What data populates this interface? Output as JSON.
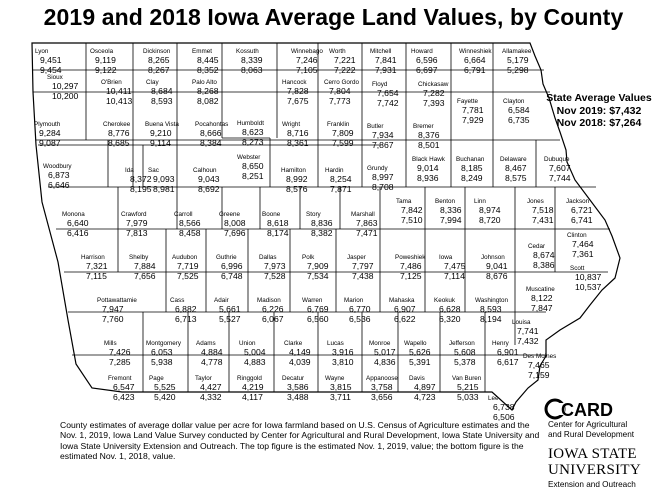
{
  "title": "2019 and 2018 Iowa Average Land Values, by County",
  "state": {
    "heading": "State Average Values",
    "line_2019": "Nov 2019: $7,432",
    "line_2018": "Nov 2018: $7,264"
  },
  "footnote": "County estimates of average dollar value per acre for Iowa farmland based on U.S. Census of Agriculture estimates and the Nov. 1, 2019, Iowa Land Value Survey conducted by Center for Agricultural and Rural Development, Iowa State University and Iowa State University Extension and Outreach. The top figure is the estimated Nov. 1, 2019, value; the bottom figure is the estimated Nov. 1, 2018, value.",
  "card": {
    "logo": "CARD",
    "line1": "Center for Agricultural",
    "line2": "and Rural Development"
  },
  "isu": {
    "line1": "IOWA STATE",
    "line2": "UNIVERSITY",
    "line3": "Extension and Outreach"
  },
  "counties": [
    {
      "name": "Lyon",
      "v2019": "9,451",
      "v2018": "9,454"
    },
    {
      "name": "Osceola",
      "v2019": "9,119",
      "v2018": "9,122"
    },
    {
      "name": "Dickinson",
      "v2019": "8,265",
      "v2018": "8,267"
    },
    {
      "name": "Emmet",
      "v2019": "8,445",
      "v2018": "8,352"
    },
    {
      "name": "Kossuth",
      "v2019": "8,339",
      "v2018": "8,063"
    },
    {
      "name": "Winnebago",
      "v2019": "7,246",
      "v2018": "7,105"
    },
    {
      "name": "Worth",
      "v2019": "7,221",
      "v2018": "7,222"
    },
    {
      "name": "Mitchell",
      "v2019": "7,841",
      "v2018": "7,931"
    },
    {
      "name": "Howard",
      "v2019": "6,596",
      "v2018": "6,697"
    },
    {
      "name": "Winneshiek",
      "v2019": "6,664",
      "v2018": "6,791"
    },
    {
      "name": "Allamakee",
      "v2019": "5,179",
      "v2018": "5,298"
    },
    {
      "name": "Sioux",
      "v2019": "10,297",
      "v2018": "10,200"
    },
    {
      "name": "O'Brien",
      "v2019": "10,411",
      "v2018": "10,413"
    },
    {
      "name": "Clay",
      "v2019": "8,684",
      "v2018": "8,593"
    },
    {
      "name": "Palo Alto",
      "v2019": "8,268",
      "v2018": "8,082"
    },
    {
      "name": "Hancock",
      "v2019": "7,828",
      "v2018": "7,675"
    },
    {
      "name": "Cerro Gordo",
      "v2019": "7,804",
      "v2018": "7,773"
    },
    {
      "name": "Floyd",
      "v2019": "7,654",
      "v2018": "7,742"
    },
    {
      "name": "Chickasaw",
      "v2019": "7,282",
      "v2018": "7,393"
    },
    {
      "name": "Fayette",
      "v2019": "7,781",
      "v2018": "7,929"
    },
    {
      "name": "Clayton",
      "v2019": "6,584",
      "v2018": "6,735"
    },
    {
      "name": "Plymouth",
      "v2019": "9,284",
      "v2018": "9,087"
    },
    {
      "name": "Cherokee",
      "v2019": "8,776",
      "v2018": "8,685"
    },
    {
      "name": "Buena Vista",
      "v2019": "9,210",
      "v2018": "9,114"
    },
    {
      "name": "Pocahontas",
      "v2019": "8,666",
      "v2018": "8,384"
    },
    {
      "name": "Humboldt",
      "v2019": "8,623",
      "v2018": "8,273"
    },
    {
      "name": "Wright",
      "v2019": "8,716",
      "v2018": "8,361"
    },
    {
      "name": "Franklin",
      "v2019": "7,809",
      "v2018": "7,599"
    },
    {
      "name": "Butler",
      "v2019": "7,934",
      "v2018": "7,867"
    },
    {
      "name": "Bremer",
      "v2019": "8,376",
      "v2018": "8,501"
    },
    {
      "name": "Woodbury",
      "v2019": "6,873",
      "v2018": "6,646"
    },
    {
      "name": "Ida",
      "v2019": "8,372",
      "v2018": "8,195"
    },
    {
      "name": "Sac",
      "v2019": "9,093",
      "v2018": "8,981"
    },
    {
      "name": "Calhoun",
      "v2019": "9,043",
      "v2018": "8,692"
    },
    {
      "name": "Webster",
      "v2019": "8,650",
      "v2018": "8,251"
    },
    {
      "name": "Hamilton",
      "v2019": "8,992",
      "v2018": "8,576"
    },
    {
      "name": "Hardin",
      "v2019": "8,254",
      "v2018": "7,871"
    },
    {
      "name": "Grundy",
      "v2019": "8,997",
      "v2018": "8,708"
    },
    {
      "name": "Black Hawk",
      "v2019": "9,014",
      "v2018": "8,936"
    },
    {
      "name": "Buchanan",
      "v2019": "8,185",
      "v2018": "8,249"
    },
    {
      "name": "Delaware",
      "v2019": "8,467",
      "v2018": "8,575"
    },
    {
      "name": "Dubuque",
      "v2019": "7,607",
      "v2018": "7,744"
    },
    {
      "name": "Monona",
      "v2019": "6,640",
      "v2018": "6,416"
    },
    {
      "name": "Crawford",
      "v2019": "7,979",
      "v2018": "7,813"
    },
    {
      "name": "Carroll",
      "v2019": "8,566",
      "v2018": "8,458"
    },
    {
      "name": "Greene",
      "v2019": "8,008",
      "v2018": "7,696"
    },
    {
      "name": "Boone",
      "v2019": "8,618",
      "v2018": "8,174"
    },
    {
      "name": "Story",
      "v2019": "8,836",
      "v2018": "8,382"
    },
    {
      "name": "Marshall",
      "v2019": "7,863",
      "v2018": "7,471"
    },
    {
      "name": "Tama",
      "v2019": "7,842",
      "v2018": "7,510"
    },
    {
      "name": "Benton",
      "v2019": "8,336",
      "v2018": "7,994"
    },
    {
      "name": "Linn",
      "v2019": "8,974",
      "v2018": "8,720"
    },
    {
      "name": "Jones",
      "v2019": "7,518",
      "v2018": "7,431"
    },
    {
      "name": "Jackson",
      "v2019": "6,721",
      "v2018": "6,741"
    },
    {
      "name": "Harrison",
      "v2019": "7,321",
      "v2018": "7,115"
    },
    {
      "name": "Shelby",
      "v2019": "7,884",
      "v2018": "7,656"
    },
    {
      "name": "Audubon",
      "v2019": "7,719",
      "v2018": "7,525"
    },
    {
      "name": "Guthrie",
      "v2019": "6,996",
      "v2018": "6,748"
    },
    {
      "name": "Dallas",
      "v2019": "7,973",
      "v2018": "7,528"
    },
    {
      "name": "Polk",
      "v2019": "7,909",
      "v2018": "7,534"
    },
    {
      "name": "Jasper",
      "v2019": "7,797",
      "v2018": "7,438"
    },
    {
      "name": "Poweshiek",
      "v2019": "7,486",
      "v2018": "7,125"
    },
    {
      "name": "Iowa",
      "v2019": "7,475",
      "v2018": "7,114"
    },
    {
      "name": "Johnson",
      "v2019": "9,041",
      "v2018": "8,676"
    },
    {
      "name": "Cedar",
      "v2019": "8,674",
      "v2018": "8,386"
    },
    {
      "name": "Clinton",
      "v2019": "7,464",
      "v2018": "7,361"
    },
    {
      "name": "Scott",
      "v2019": "10,837",
      "v2018": "10,537"
    },
    {
      "name": "Pottawattamie",
      "v2019": "7,947",
      "v2018": "7,760"
    },
    {
      "name": "Cass",
      "v2019": "6,882",
      "v2018": "6,713"
    },
    {
      "name": "Adair",
      "v2019": "5,661",
      "v2018": "5,527"
    },
    {
      "name": "Madison",
      "v2019": "6,226",
      "v2018": "6,067"
    },
    {
      "name": "Warren",
      "v2019": "6,769",
      "v2018": "6,560"
    },
    {
      "name": "Marion",
      "v2019": "6,770",
      "v2018": "6,536"
    },
    {
      "name": "Mahaska",
      "v2019": "6,907",
      "v2018": "6,622"
    },
    {
      "name": "Keokuk",
      "v2019": "6,628",
      "v2018": "6,320"
    },
    {
      "name": "Washington",
      "v2019": "8,593",
      "v2018": "8,194"
    },
    {
      "name": "Muscatine",
      "v2019": "8,122",
      "v2018": "7,847"
    },
    {
      "name": "Louisa",
      "v2019": "7,741",
      "v2018": "7,432"
    },
    {
      "name": "Mills",
      "v2019": "7,426",
      "v2018": "7,285"
    },
    {
      "name": "Montgomery",
      "v2019": "6,053",
      "v2018": "5,938"
    },
    {
      "name": "Adams",
      "v2019": "4,884",
      "v2018": "4,778"
    },
    {
      "name": "Union",
      "v2019": "5,004",
      "v2018": "4,883"
    },
    {
      "name": "Clarke",
      "v2019": "4,149",
      "v2018": "4,039"
    },
    {
      "name": "Lucas",
      "v2019": "3,916",
      "v2018": "3,810"
    },
    {
      "name": "Monroe",
      "v2019": "5,017",
      "v2018": "4,836"
    },
    {
      "name": "Wapello",
      "v2019": "5,626",
      "v2018": "5,391"
    },
    {
      "name": "Jefferson",
      "v2019": "5,608",
      "v2018": "5,378"
    },
    {
      "name": "Henry",
      "v2019": "6,901",
      "v2018": "6,617"
    },
    {
      "name": "Des Moines",
      "v2019": "7,465",
      "v2018": "7,159"
    },
    {
      "name": "Fremont",
      "v2019": "6,547",
      "v2018": "6,423"
    },
    {
      "name": "Page",
      "v2019": "5,525",
      "v2018": "5,420"
    },
    {
      "name": "Taylor",
      "v2019": "4,427",
      "v2018": "4,332"
    },
    {
      "name": "Ringgold",
      "v2019": "4,219",
      "v2018": "4,117"
    },
    {
      "name": "Decatur",
      "v2019": "3,586",
      "v2018": "3,488"
    },
    {
      "name": "Wayne",
      "v2019": "3,815",
      "v2018": "3,711"
    },
    {
      "name": "Appanoose",
      "v2019": "3,758",
      "v2018": "3,656"
    },
    {
      "name": "Davis",
      "v2019": "4,897",
      "v2018": "4,723"
    },
    {
      "name": "Van Buren",
      "v2019": "5,215",
      "v2018": "5,033"
    },
    {
      "name": "Lee",
      "v2019": "6,738",
      "v2018": "6,506"
    }
  ]
}
